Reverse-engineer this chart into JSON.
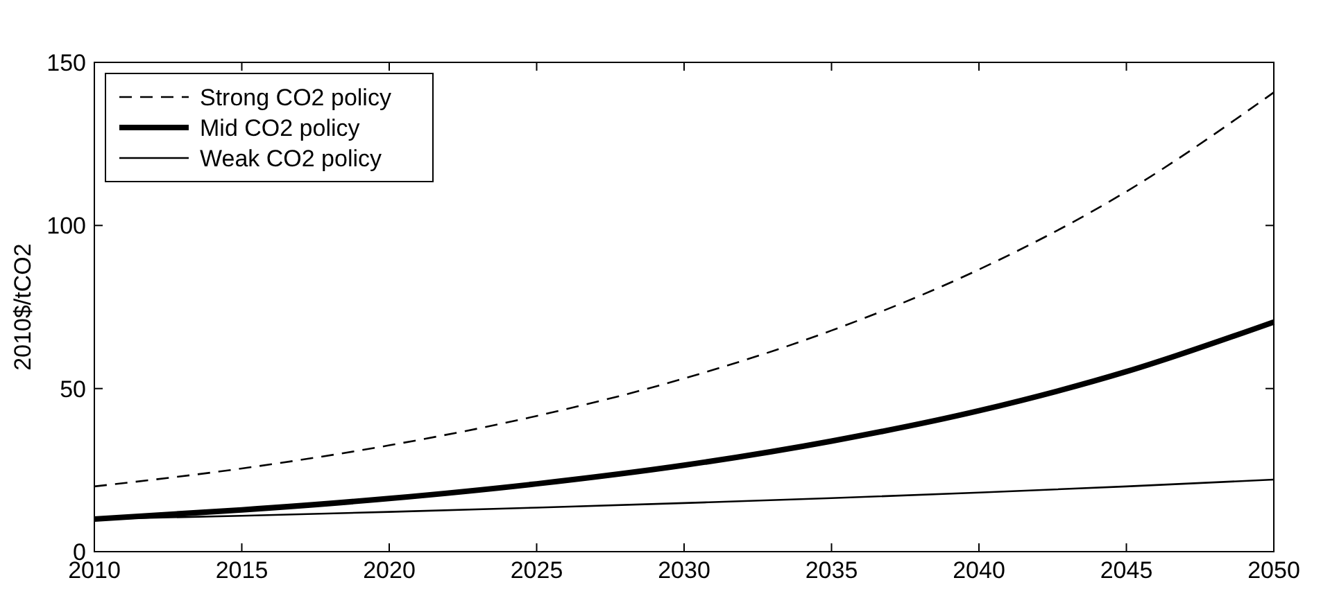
{
  "chart_data": {
    "type": "line",
    "ylabel": "2010$/tCO2",
    "x": [
      2010,
      2015,
      2020,
      2025,
      2030,
      2035,
      2040,
      2045,
      2050
    ],
    "series": [
      {
        "name": "Strong CO2 policy",
        "color": "#000000",
        "line_style": "dashed",
        "values": [
          20,
          25.5,
          32.6,
          41.6,
          53.1,
          67.8,
          86.5,
          110.4,
          140.8
        ]
      },
      {
        "name": "Mid CO2 policy",
        "color": "#000000",
        "line_style": "solid",
        "values": [
          10,
          12.8,
          16.3,
          20.8,
          26.5,
          33.9,
          43.2,
          55.2,
          70.4
        ]
      },
      {
        "name": "Weak CO2 policy",
        "color": "#000000",
        "line_style": "solid",
        "values": [
          10,
          11.0,
          12.2,
          13.5,
          14.9,
          16.4,
          18.1,
          20.0,
          22.1
        ]
      }
    ],
    "xlim": [
      2010,
      2050
    ],
    "xticks": [
      2010,
      2015,
      2020,
      2025,
      2030,
      2035,
      2040,
      2045,
      2050
    ],
    "ylim": [
      0,
      150
    ],
    "yticks": [
      0,
      50,
      100,
      150
    ],
    "grid": false,
    "legend": "top left"
  }
}
